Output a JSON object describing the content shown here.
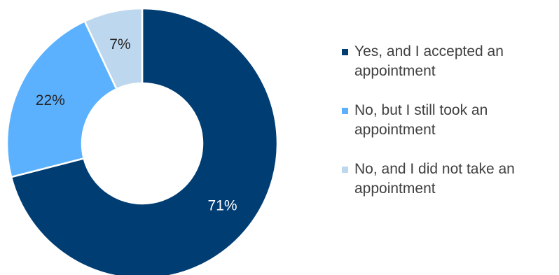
{
  "chart_data": {
    "type": "pie",
    "donut": true,
    "title": "",
    "legend_position": "right",
    "series": [
      {
        "categories": [
          "Yes, and I accepted an appointment",
          "No, but I still took an appointment",
          "No, and I did not take an appointment"
        ],
        "values": [
          71,
          22,
          7
        ],
        "labels": [
          "71%",
          "22%",
          "7%"
        ]
      }
    ],
    "colors": [
      "#003d73",
      "#5cb1ff",
      "#bdd7ee"
    ],
    "label_colors": [
      "#ffffff",
      "#262626",
      "#262626"
    ]
  },
  "legend": {
    "items": [
      {
        "label": "Yes, and I accepted an appointment",
        "color": "#003d73"
      },
      {
        "label": "No, but I still took an appointment",
        "color": "#5cb1ff"
      },
      {
        "label": "No, and I did not take an appointment",
        "color": "#bdd7ee"
      }
    ]
  }
}
